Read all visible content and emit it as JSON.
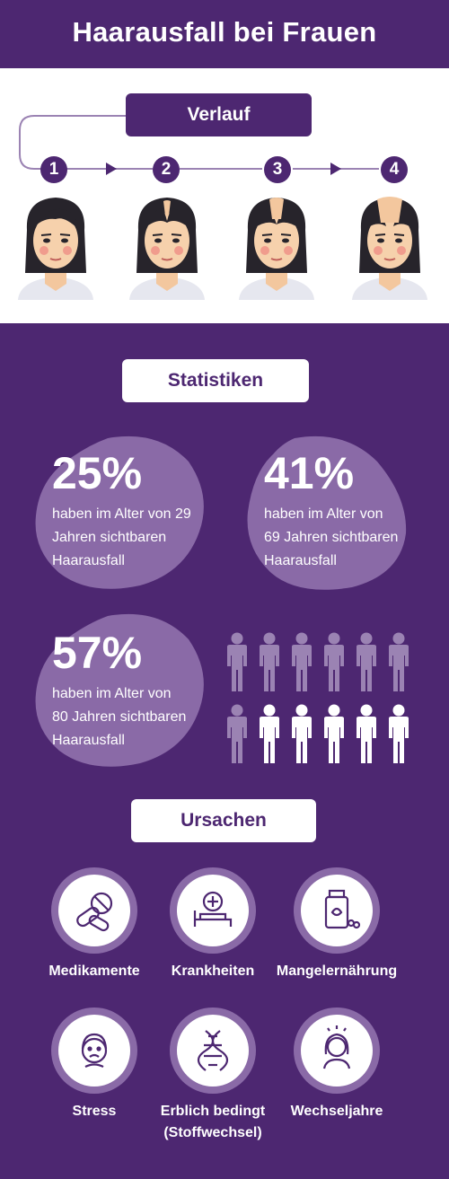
{
  "title": "Haarausfall bei Frauen",
  "progression": {
    "heading": "Verlauf",
    "steps": [
      "1",
      "2",
      "3",
      "4"
    ]
  },
  "statistics": {
    "heading": "Statistiken",
    "items": [
      {
        "value": "25%",
        "line1": "haben im Alter von 29",
        "line2": "Jahren sichtbaren",
        "line3": "Haarausfall"
      },
      {
        "value": "41%",
        "line1": "haben im Alter von",
        "line2": "69 Jahren sichtbaren",
        "line3": "Haarausfall"
      },
      {
        "value": "57%",
        "line1": "haben im Alter von",
        "line2": "80 Jahren sichtbaren",
        "line3": "Haarausfall"
      }
    ],
    "people_total": 12,
    "people_highlighted": 5
  },
  "causes": {
    "heading": "Ursachen",
    "items": [
      {
        "label": "Medikamente",
        "icon": "pills-icon"
      },
      {
        "label": "Krankheiten",
        "icon": "hospital-bed-icon"
      },
      {
        "label": "Mangelernährung",
        "icon": "supplement-bottle-icon"
      },
      {
        "label": "Stress",
        "icon": "stressed-face-icon"
      },
      {
        "label": "Erblich bedingt",
        "label2": "(Stoffwechsel)",
        "icon": "dna-icon"
      },
      {
        "label": "Wechseljahre",
        "icon": "woman-icon"
      }
    ]
  },
  "colors": {
    "primary": "#4d2771",
    "blob": "#8a6aa7",
    "person_dim": "#9b83b3",
    "white": "#ffffff"
  }
}
